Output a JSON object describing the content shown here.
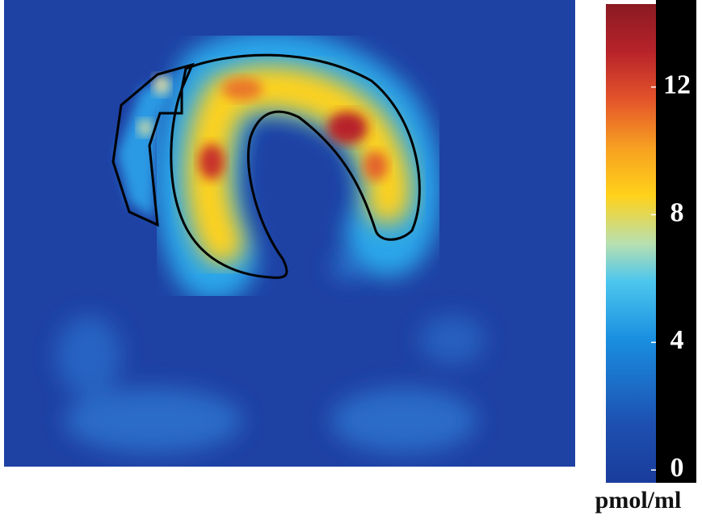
{
  "colorbar": {
    "label": "pmol/ml",
    "ticks": [
      0,
      4,
      8,
      12
    ],
    "range": [
      -0.4,
      14.6
    ]
  }
}
